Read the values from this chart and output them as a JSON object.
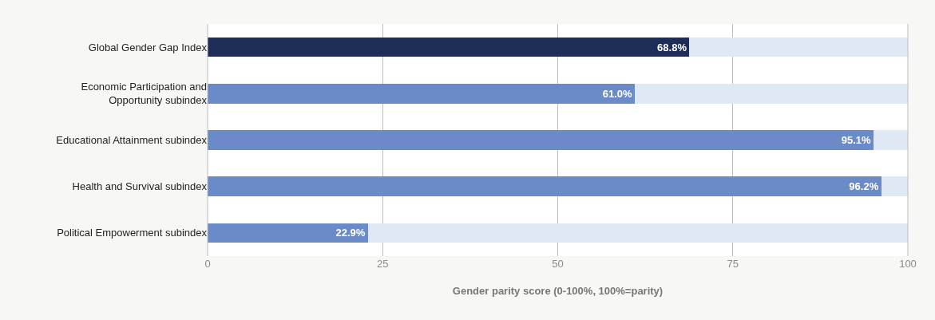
{
  "chart_data": {
    "type": "bar",
    "orientation": "horizontal",
    "stacked": true,
    "categories": [
      "Global Gender Gap Index",
      "Economic Participation and Opportunity subindex",
      "Educational Attainment subindex",
      "Health and Survival subindex",
      "Political Empowerment subindex"
    ],
    "series": [
      {
        "colors": [
          "#1e2d58",
          "#6a8ac8",
          "#6a8ac8",
          "#6a8ac8",
          "#6a8ac8"
        ],
        "values": [
          68.8,
          61.0,
          95.1,
          96.2,
          22.9
        ],
        "value_labels": [
          "68.8%",
          "61.0%",
          "95.1%",
          "96.2%",
          "22.9%"
        ]
      },
      {
        "color": "#dfe8f5",
        "values": [
          31.2,
          39.0,
          4.9,
          3.8,
          77.1
        ]
      }
    ],
    "xlabel": "Gender parity score (0-100%, 100%=parity)",
    "xlim": [
      0,
      100
    ],
    "xticks": [
      0,
      25,
      50,
      75,
      100
    ],
    "grid": "x"
  }
}
